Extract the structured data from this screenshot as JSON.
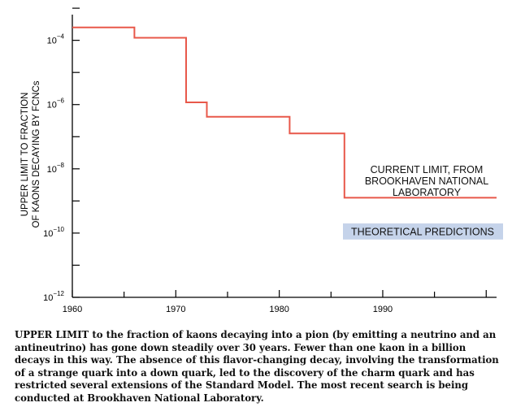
{
  "chart_data": {
    "type": "line",
    "step": true,
    "xlabel": "",
    "ylabel_lines": [
      "UPPER LIMIT TO FRACTION",
      "OF KAONS DECAYING BY FCNCs"
    ],
    "xlim": [
      1960,
      2001
    ],
    "y_log_exponent_lim": [
      -12,
      -3.2
    ],
    "log_scale_y": true,
    "x_tick_labels": [
      "1960",
      "1970",
      "1980",
      "1990"
    ],
    "x_ticks": [
      1960,
      1970,
      1980,
      1990
    ],
    "y_tick_base": "10",
    "y_tick_exponents": [
      "−4",
      "−6",
      "−8",
      "−10",
      "−12"
    ],
    "y_tick_values": [
      -4,
      -6,
      -8,
      -10,
      -12
    ],
    "series": [
      {
        "color": "#e8584a",
        "x": [
          1960,
          1966,
          1966,
          1971,
          1971,
          1973,
          1973,
          1981,
          1981,
          1986.3,
          1986.3,
          2001
        ],
        "log10_y": [
          -3.6,
          -3.6,
          -3.92,
          -3.92,
          -5.93,
          -5.93,
          -6.38,
          -6.38,
          -6.9,
          -6.9,
          -8.9,
          -8.9
        ]
      }
    ],
    "annotations": {
      "current_limit_lines": [
        "CURRENT LIMIT, FROM",
        "BROOKHAVEN NATIONAL",
        "LABORATORY"
      ],
      "theoretical_label": "THEORETICAL PREDICTIONS",
      "theoretical_band_color": "#c5d3ea",
      "theoretical_log10_range": [
        -10.2,
        -9.7
      ]
    }
  },
  "caption": "UPPER LIMIT to the fraction of kaons decaying into a pion (by emitting a neutrino and an antineutrino) has gone down steadily over 30 years. Fewer than one kaon in a billion decays in this way. The absence of this flavor-changing decay, involving the transformation of a strange quark into a down quark, led to the discovery of the charm quark and has restricted several extensions of the Standard Model. The most recent search is being conducted at Brookhaven National Laboratory."
}
